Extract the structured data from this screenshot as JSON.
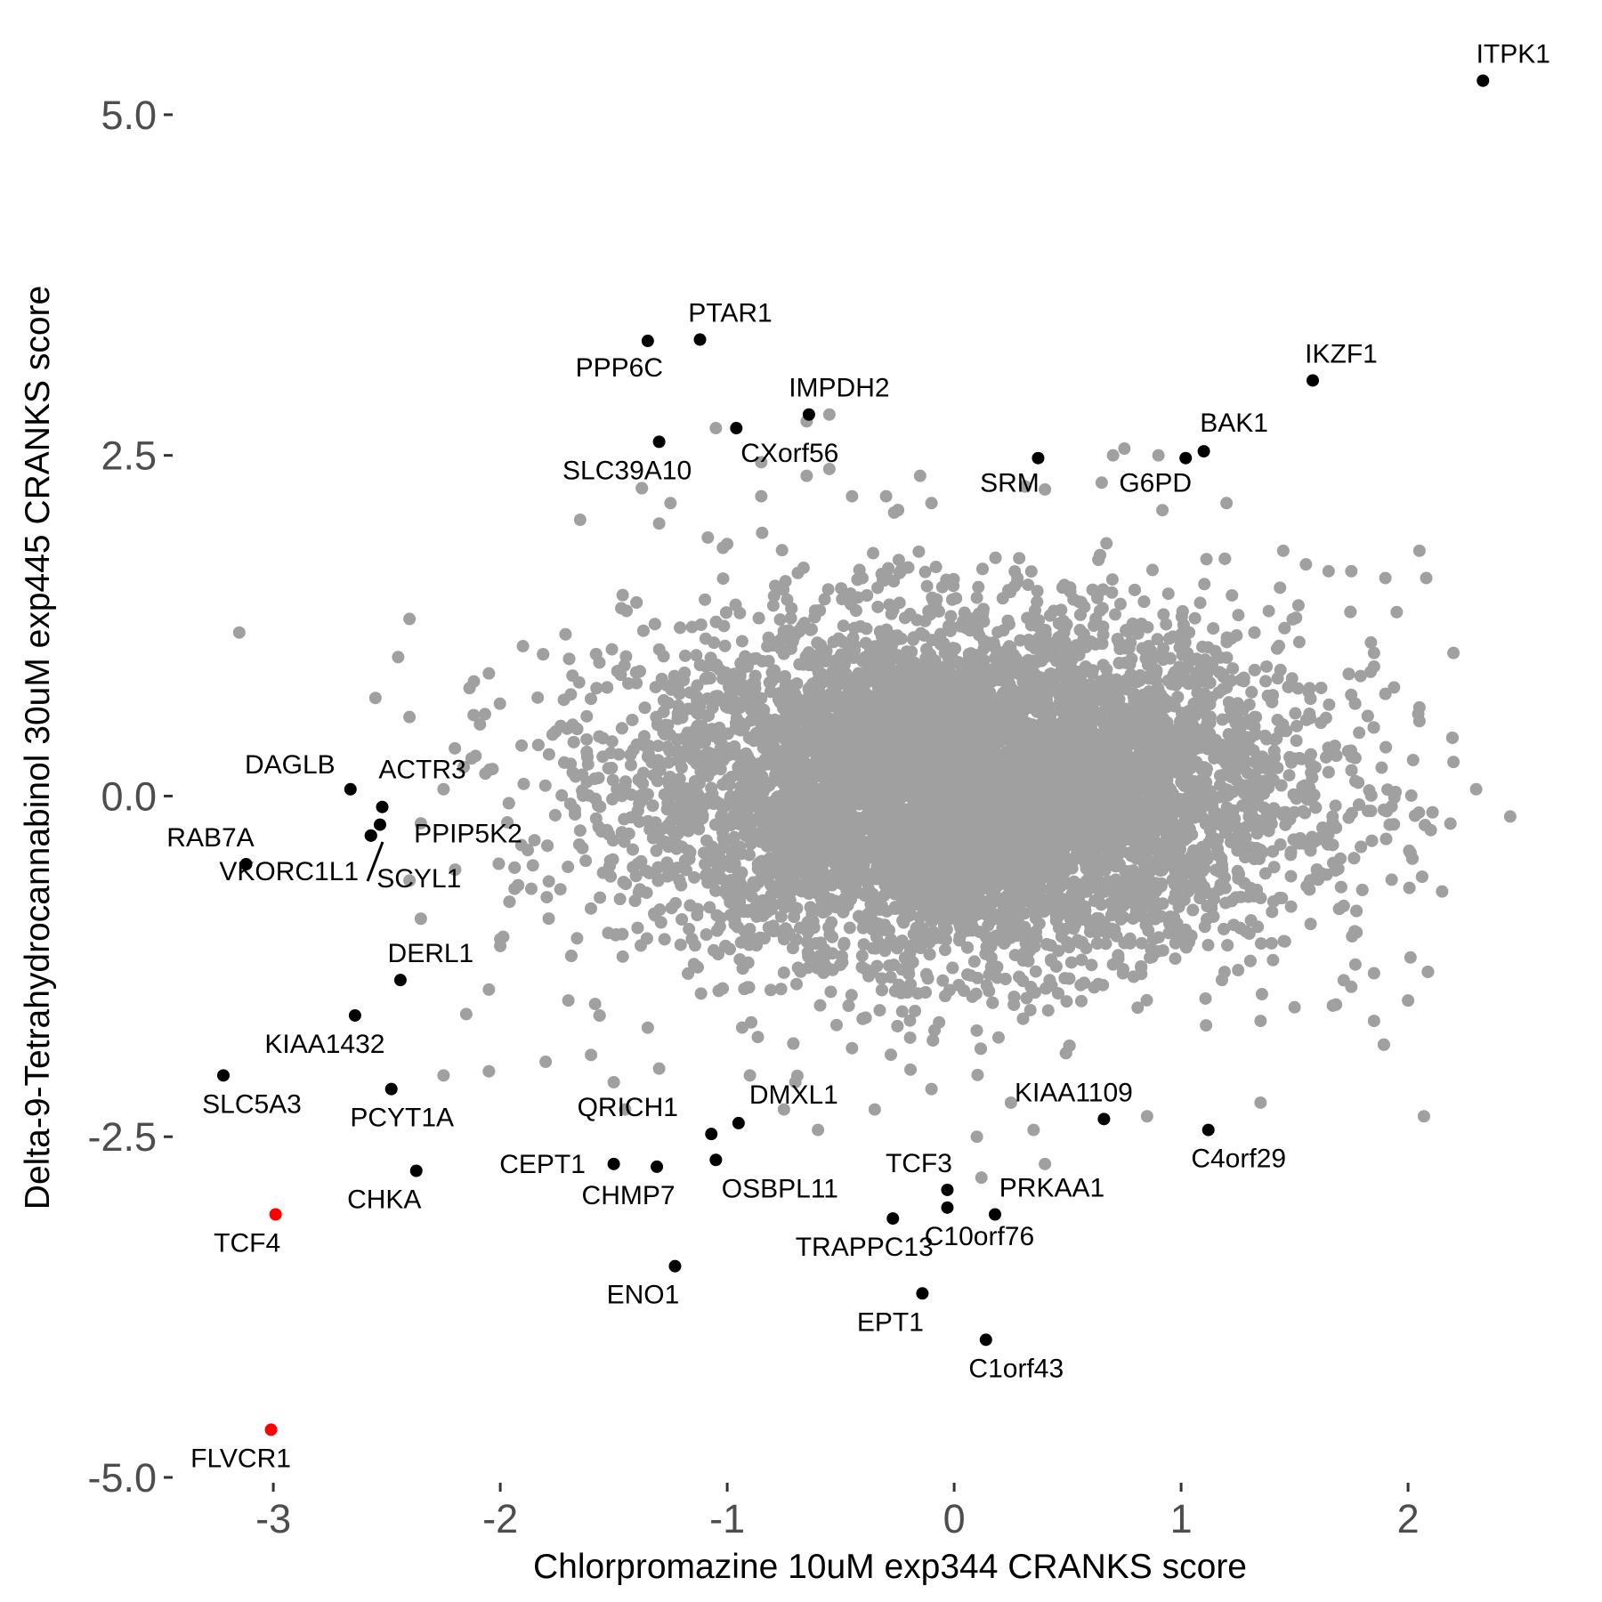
{
  "chart_data": {
    "type": "scatter",
    "title": "",
    "xlabel": "Chlorpromazine 10uM exp344 CRANKS score",
    "ylabel": "Delta-9-Tetrahydrocannabinol 30uM exp445 CRANKS score",
    "xlim": [
      -3.42,
      2.58
    ],
    "ylim": [
      -5.0,
      5.45
    ],
    "x_ticks": [
      {
        "value": -3,
        "label": "-3"
      },
      {
        "value": -2,
        "label": "-2"
      },
      {
        "value": -1,
        "label": "-1"
      },
      {
        "value": 0,
        "label": "0"
      },
      {
        "value": 1,
        "label": "1"
      },
      {
        "value": 2,
        "label": "2"
      }
    ],
    "y_ticks": [
      {
        "value": 5.0,
        "label": "5.0"
      },
      {
        "value": 2.5,
        "label": "2.5"
      },
      {
        "value": 0.0,
        "label": "0.0"
      },
      {
        "value": -2.5,
        "label": "-2.5"
      },
      {
        "value": -5.0,
        "label": "-5.0"
      }
    ],
    "grid": false,
    "legend": "none",
    "colors": {
      "background_genes": "#a0a0a0",
      "labeled_genes": "#000000",
      "highlighted_genes": "#ff0000"
    },
    "background_cloud": {
      "description": "dense cloud of unlabeled genes (grey)",
      "approx_center": [
        0.05,
        0.05
      ],
      "approx_sd": [
        0.72,
        0.62
      ],
      "approx_count": 9000,
      "outliers": [
        [
          -3.15,
          1.2
        ],
        [
          -2.4,
          1.3
        ],
        [
          -2.45,
          1.02
        ],
        [
          -2.55,
          0.72
        ],
        [
          -2.4,
          0.58
        ],
        [
          -2.05,
          0.9
        ],
        [
          -1.9,
          1.1
        ],
        [
          -2.2,
          0.35
        ],
        [
          -2.25,
          0.05
        ],
        [
          -2.35,
          -0.2
        ],
        [
          -2.4,
          -0.62
        ],
        [
          -2.35,
          -0.9
        ],
        [
          -2.0,
          -1.1
        ],
        [
          -2.0,
          -1.05
        ],
        [
          -2.15,
          -1.6
        ],
        [
          -2.25,
          -2.05
        ],
        [
          -2.05,
          -2.02
        ],
        [
          -1.7,
          -1.5
        ],
        [
          -1.8,
          -1.95
        ],
        [
          -2.05,
          -1.42
        ],
        [
          -1.25,
          2.15
        ],
        [
          -1.3,
          2.0
        ],
        [
          -1.0,
          1.85
        ],
        [
          -0.85,
          2.2
        ],
        [
          -0.65,
          2.35
        ],
        [
          -0.55,
          2.8
        ],
        [
          -0.65,
          2.75
        ],
        [
          -1.05,
          2.7
        ],
        [
          -0.55,
          2.4
        ],
        [
          -0.85,
          2.45
        ],
        [
          -0.45,
          2.2
        ],
        [
          -0.3,
          2.2
        ],
        [
          -0.1,
          2.15
        ],
        [
          -0.15,
          2.35
        ],
        [
          0.4,
          2.25
        ],
        [
          0.75,
          2.55
        ],
        [
          0.7,
          2.5
        ],
        [
          0.65,
          2.3
        ],
        [
          0.9,
          2.5
        ],
        [
          1.2,
          2.15
        ],
        [
          1.45,
          1.8
        ],
        [
          1.55,
          1.7
        ],
        [
          1.65,
          1.65
        ],
        [
          1.75,
          1.65
        ],
        [
          1.9,
          1.6
        ],
        [
          2.05,
          1.8
        ],
        [
          2.08,
          1.6
        ],
        [
          1.95,
          1.35
        ],
        [
          1.85,
          1.05
        ],
        [
          1.85,
          0.95
        ],
        [
          1.9,
          0.75
        ],
        [
          2.2,
          1.05
        ],
        [
          2.05,
          0.65
        ],
        [
          2.05,
          0.55
        ],
        [
          2.3,
          0.05
        ],
        [
          2.45,
          -0.15
        ],
        [
          2.2,
          0.25
        ],
        [
          2.1,
          -0.25
        ],
        [
          2.15,
          -0.7
        ],
        [
          2.0,
          -1.5
        ],
        [
          1.85,
          -1.3
        ],
        [
          1.85,
          -1.65
        ],
        [
          1.75,
          -1.4
        ],
        [
          1.5,
          -1.55
        ],
        [
          1.35,
          -1.65
        ],
        [
          2.07,
          -2.35
        ],
        [
          1.35,
          -2.25
        ],
        [
          0.85,
          -2.35
        ],
        [
          0.35,
          -2.45
        ],
        [
          0.4,
          -2.7
        ],
        [
          0.1,
          -2.5
        ],
        [
          0.12,
          -2.8
        ],
        [
          -0.35,
          -2.3
        ],
        [
          -0.1,
          -2.15
        ],
        [
          -0.6,
          -2.45
        ],
        [
          -0.75,
          -2.3
        ],
        [
          -1.3,
          -2.0
        ],
        [
          -1.45,
          -2.3
        ],
        [
          -1.5,
          -2.1
        ],
        [
          -1.35,
          -1.7
        ],
        [
          -1.6,
          -1.9
        ],
        [
          -0.9,
          -2.05
        ],
        [
          -0.45,
          -1.85
        ],
        [
          0.25,
          -2.25
        ],
        [
          -0.7,
          -2.1
        ]
      ]
    },
    "labeled_points": [
      {
        "label": "ITPK1",
        "x": 2.33,
        "y": 5.25,
        "color": "#000000"
      },
      {
        "label": "IKZF1",
        "x": 1.58,
        "y": 3.05,
        "color": "#000000"
      },
      {
        "label": "BAK1",
        "x": 1.1,
        "y": 2.53,
        "color": "#000000"
      },
      {
        "label": "G6PD",
        "x": 1.02,
        "y": 2.48,
        "color": "#000000"
      },
      {
        "label": "SRM",
        "x": 0.37,
        "y": 2.48,
        "color": "#000000"
      },
      {
        "label": "PTAR1",
        "x": -1.12,
        "y": 3.35,
        "color": "#000000"
      },
      {
        "label": "PPP6C",
        "x": -1.35,
        "y": 3.34,
        "color": "#000000"
      },
      {
        "label": "IMPDH2",
        "x": -0.64,
        "y": 2.8,
        "color": "#000000"
      },
      {
        "label": "CXorf56",
        "x": -0.96,
        "y": 2.7,
        "color": "#000000"
      },
      {
        "label": "SLC39A10",
        "x": -1.3,
        "y": 2.6,
        "color": "#000000"
      },
      {
        "label": "DAGLB",
        "x": -2.66,
        "y": 0.05,
        "color": "#000000"
      },
      {
        "label": "ACTR3",
        "x": -2.52,
        "y": -0.08,
        "color": "#000000"
      },
      {
        "label": "PPIP5K2",
        "x": -2.53,
        "y": -0.21,
        "color": "#000000"
      },
      {
        "label": "SCYL1",
        "x": -2.57,
        "y": -0.29,
        "color": "#000000"
      },
      {
        "label": "RAB7A",
        "x": -3.12,
        "y": -0.5,
        "color": "#000000"
      },
      {
        "label": "VKORC1L1",
        "x": -2.57,
        "y": -0.29,
        "color": "#000000"
      },
      {
        "label": "DERL1",
        "x": -2.44,
        "y": -1.35,
        "color": "#000000"
      },
      {
        "label": "KIAA1432",
        "x": -2.64,
        "y": -1.61,
        "color": "#000000"
      },
      {
        "label": "SLC5A3",
        "x": -3.22,
        "y": -2.05,
        "color": "#000000"
      },
      {
        "label": "PCYT1A",
        "x": -2.48,
        "y": -2.15,
        "color": "#000000"
      },
      {
        "label": "CHKA",
        "x": -2.37,
        "y": -2.75,
        "color": "#000000"
      },
      {
        "label": "TCF4",
        "x": -2.99,
        "y": -3.07,
        "color": "#ff0000"
      },
      {
        "label": "FLVCR1",
        "x": -3.01,
        "y": -4.65,
        "color": "#ff0000"
      },
      {
        "label": "QRICH1",
        "x": -1.07,
        "y": -2.48,
        "color": "#000000"
      },
      {
        "label": "DMXL1",
        "x": -0.95,
        "y": -2.4,
        "color": "#000000"
      },
      {
        "label": "CEPT1",
        "x": -1.5,
        "y": -2.7,
        "color": "#000000"
      },
      {
        "label": "CHMP7",
        "x": -1.31,
        "y": -2.72,
        "color": "#000000"
      },
      {
        "label": "OSBPL11",
        "x": -1.05,
        "y": -2.67,
        "color": "#000000"
      },
      {
        "label": "ENO1",
        "x": -1.23,
        "y": -3.45,
        "color": "#000000"
      },
      {
        "label": "TCF3",
        "x": -0.03,
        "y": -2.89,
        "color": "#000000"
      },
      {
        "label": "TRAPPC13",
        "x": -0.27,
        "y": -3.1,
        "color": "#000000"
      },
      {
        "label": "C10orf76",
        "x": -0.03,
        "y": -3.02,
        "color": "#000000"
      },
      {
        "label": "PRKAA1",
        "x": 0.18,
        "y": -3.07,
        "color": "#000000"
      },
      {
        "label": "EPT1",
        "x": -0.14,
        "y": -3.65,
        "color": "#000000"
      },
      {
        "label": "C1orf43",
        "x": 0.14,
        "y": -3.99,
        "color": "#000000"
      },
      {
        "label": "KIAA1109",
        "x": 0.66,
        "y": -2.37,
        "color": "#000000"
      },
      {
        "label": "C4orf29",
        "x": 1.12,
        "y": -2.45,
        "color": "#000000"
      }
    ]
  }
}
